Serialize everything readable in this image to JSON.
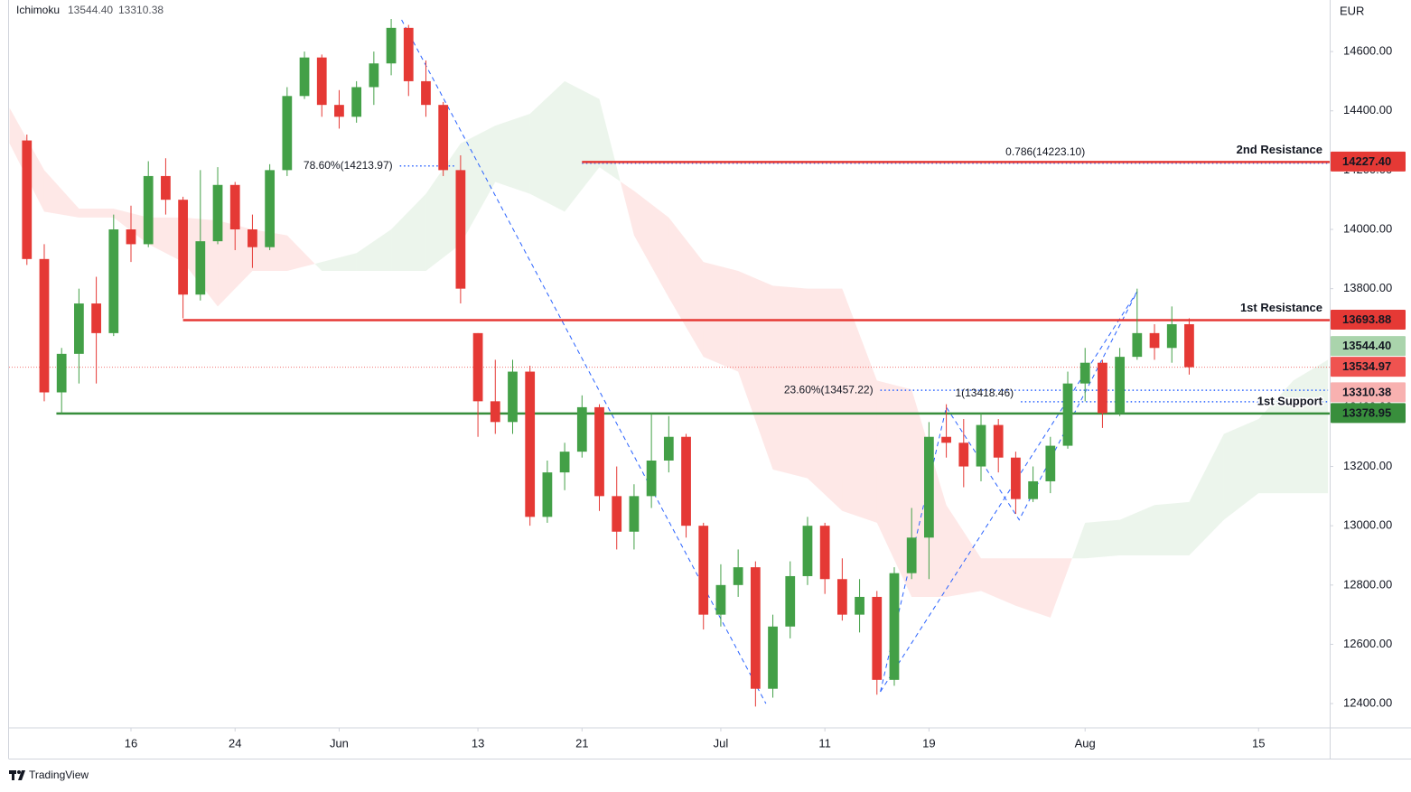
{
  "chart_data": {
    "type": "candlestick",
    "currency": "EUR",
    "xlim": [
      -1.03,
      75.1
    ],
    "ylim": [
      12318,
      14774
    ],
    "xticks": [
      {
        "value": 6,
        "label": "16"
      },
      {
        "value": 12,
        "label": "24"
      },
      {
        "value": 18,
        "label": "Jun"
      },
      {
        "value": 26,
        "label": "13"
      },
      {
        "value": 32,
        "label": "21"
      },
      {
        "value": 40,
        "label": "Jul"
      },
      {
        "value": 46,
        "label": "11"
      },
      {
        "value": 52,
        "label": "19"
      },
      {
        "value": 61,
        "label": "Aug"
      },
      {
        "value": 71,
        "label": "15"
      }
    ],
    "yticks": [
      {
        "value": 12400,
        "label": "12400.00"
      },
      {
        "value": 12600,
        "label": "12600.00"
      },
      {
        "value": 12800,
        "label": "12800.00"
      },
      {
        "value": 13000,
        "label": "13000.00"
      },
      {
        "value": 13200,
        "label": "13200.00"
      },
      {
        "value": 13400,
        "label": "13400.00"
      },
      {
        "value": 13600,
        "label": "13600.00"
      },
      {
        "value": 13800,
        "label": "13800.00"
      },
      {
        "value": 14000,
        "label": "14000.00"
      },
      {
        "value": 14200,
        "label": "14200.00"
      },
      {
        "value": 14400,
        "label": "14400.00"
      },
      {
        "value": 14600,
        "label": "14600.00"
      }
    ],
    "up_color": "#43a047",
    "down_color": "#e53935",
    "open": [
      14300,
      13900,
      13450,
      13580,
      13750,
      13650,
      14000,
      13950,
      14180,
      14100,
      13780,
      13960,
      14150,
      14000,
      13940,
      14200,
      14450,
      14580,
      14420,
      14380,
      14480,
      14560,
      14680,
      14500,
      14420,
      14200,
      13650,
      13420,
      13350,
      13520,
      13030,
      13180,
      13250,
      13400,
      13100,
      12980,
      13100,
      13220,
      13300,
      13000,
      12700,
      12800,
      12860,
      12450,
      12660,
      12830,
      13000,
      12820,
      12700,
      12760,
      12480,
      12840,
      12960,
      13300,
      13280,
      13200,
      13340,
      13230,
      13090,
      13150,
      13270,
      13480,
      13550,
      13380,
      13570,
      13650,
      13600,
      13680
    ],
    "high": [
      14320,
      13950,
      13600,
      13800,
      13840,
      14050,
      14080,
      14230,
      14240,
      14110,
      14200,
      14210,
      14160,
      14050,
      14220,
      14480,
      14600,
      14590,
      14470,
      14500,
      14600,
      14710,
      14690,
      14570,
      14430,
      14250,
      13650,
      13560,
      13560,
      13540,
      13220,
      13280,
      13440,
      13410,
      13200,
      13140,
      13380,
      13370,
      13310,
      13010,
      12870,
      12920,
      12880,
      12700,
      12880,
      13030,
      13010,
      12890,
      12820,
      12780,
      12860,
      13060,
      13350,
      13410,
      13360,
      13380,
      13360,
      13250,
      13200,
      13300,
      13520,
      13600,
      13560,
      13600,
      13800,
      13680,
      13740,
      13700
    ],
    "low": [
      13880,
      13420,
      13378,
      13480,
      13480,
      13640,
      13890,
      13940,
      14050,
      13700,
      13760,
      13950,
      13930,
      13870,
      13930,
      14180,
      14440,
      14380,
      14340,
      14360,
      14420,
      14520,
      14450,
      14380,
      14180,
      13750,
      13300,
      13310,
      13310,
      13000,
      13010,
      13120,
      13230,
      13050,
      12920,
      12920,
      13060,
      13180,
      12960,
      12650,
      12660,
      12760,
      12390,
      12420,
      12620,
      12800,
      12770,
      12680,
      12640,
      12430,
      12460,
      12820,
      12820,
      13230,
      13130,
      13150,
      13180,
      13040,
      13080,
      13110,
      13260,
      13420,
      13330,
      13370,
      13560,
      13560,
      13550,
      13510
    ],
    "close": [
      13900,
      13450,
      13580,
      13750,
      13650,
      14000,
      13950,
      14180,
      14100,
      13780,
      13960,
      14150,
      14000,
      13940,
      14200,
      14450,
      14580,
      14420,
      14380,
      14480,
      14560,
      14680,
      14500,
      14420,
      14200,
      13800,
      13420,
      13350,
      13520,
      13030,
      13180,
      13250,
      13400,
      13100,
      12980,
      13100,
      13220,
      13300,
      13000,
      12700,
      12800,
      12860,
      12450,
      12660,
      12830,
      13000,
      12820,
      12700,
      12760,
      12480,
      12840,
      12960,
      13300,
      13280,
      13200,
      13340,
      13230,
      13090,
      13150,
      13270,
      13480,
      13550,
      13380,
      13570,
      13650,
      13600,
      13680,
      13535
    ],
    "cloud_up_color": "#43a047",
    "cloud_down_color": "#f44336",
    "cloud_x": [
      -1,
      1,
      3,
      5,
      7,
      9,
      11,
      13,
      15,
      17,
      19,
      21,
      23,
      25,
      27,
      29,
      31,
      33,
      35,
      37,
      39,
      41,
      43,
      45,
      47,
      49,
      51,
      53,
      55,
      57,
      59,
      61,
      63,
      65,
      67,
      69,
      71,
      73,
      75
    ],
    "senkou_a": [
      14290,
      14060,
      14040,
      14040,
      13950,
      13890,
      13740,
      13860,
      13860,
      13890,
      13920,
      14000,
      14120,
      14290,
      14350,
      14390,
      14500,
      14440,
      13980,
      13770,
      13570,
      13520,
      13190,
      13160,
      13050,
      13010,
      12760,
      12760,
      12780,
      12730,
      12690,
      13010,
      13020,
      13070,
      13080,
      13310,
      13360,
      13490,
      13560
    ],
    "senkou_b": [
      14410,
      14200,
      14070,
      14070,
      14040,
      14040,
      14030,
      14000,
      13980,
      13860,
      13860,
      13860,
      13860,
      13950,
      14160,
      14120,
      14060,
      14210,
      14130,
      14040,
      13890,
      13860,
      13810,
      13800,
      13800,
      13490,
      13460,
      13070,
      12890,
      12890,
      12890,
      12890,
      12900,
      12900,
      12900,
      13020,
      13110,
      13110,
      13110
    ],
    "last_price": {
      "value": 13534.97,
      "label": "13534.97",
      "color": "#ef5350"
    },
    "levels": [
      {
        "name": "2nd Resistance",
        "value": 14227.4,
        "label": "14227.40",
        "color": "#e53935",
        "start": 32
      },
      {
        "name": "1st Resistance",
        "value": 13693.88,
        "label": "13693.88",
        "color": "#e53935",
        "start": 9
      },
      {
        "name": "1st Support",
        "value": 13378.95,
        "label": "13378.95",
        "color": "#388e3c",
        "start": 1.7
      }
    ],
    "fib_color": "#2962ff",
    "fibs": [
      {
        "label": "78.60%(14213.97)",
        "value": 14213.97,
        "start": 21.5,
        "end": 24.7,
        "label_position": "left"
      },
      {
        "label": "0.786(14223.10)",
        "value": 14223.1,
        "start": 32,
        "end": 75,
        "label_position": "above"
      },
      {
        "label": "23.60%(13457.22)",
        "value": 13457.22,
        "start": 49.2,
        "end": 75,
        "label_position": "left"
      },
      {
        "label": "1(13418.46)",
        "value": 13418.46,
        "start": 57.3,
        "end": 75,
        "label_position": "above-left"
      }
    ],
    "trendline_color": "#2962ff",
    "trendlines": [
      {
        "x": [
          21.6,
          42.6
        ],
        "y": [
          14707,
          12400
        ]
      },
      {
        "x": [
          49.2,
          64
        ],
        "y": [
          12440,
          13790
        ]
      },
      {
        "x": [
          49.2,
          53,
          57.2,
          64
        ],
        "y": [
          12440,
          13400,
          13020,
          13790
        ]
      }
    ],
    "ichimoku": {
      "name": "Ichimoku",
      "values": [
        13544.4,
        13310.38
      ],
      "labels": [
        "13544.40",
        "13310.38"
      ],
      "colors": [
        "#43a047",
        "#ef5350"
      ]
    }
  },
  "footer": {
    "brand": "TradingView"
  }
}
